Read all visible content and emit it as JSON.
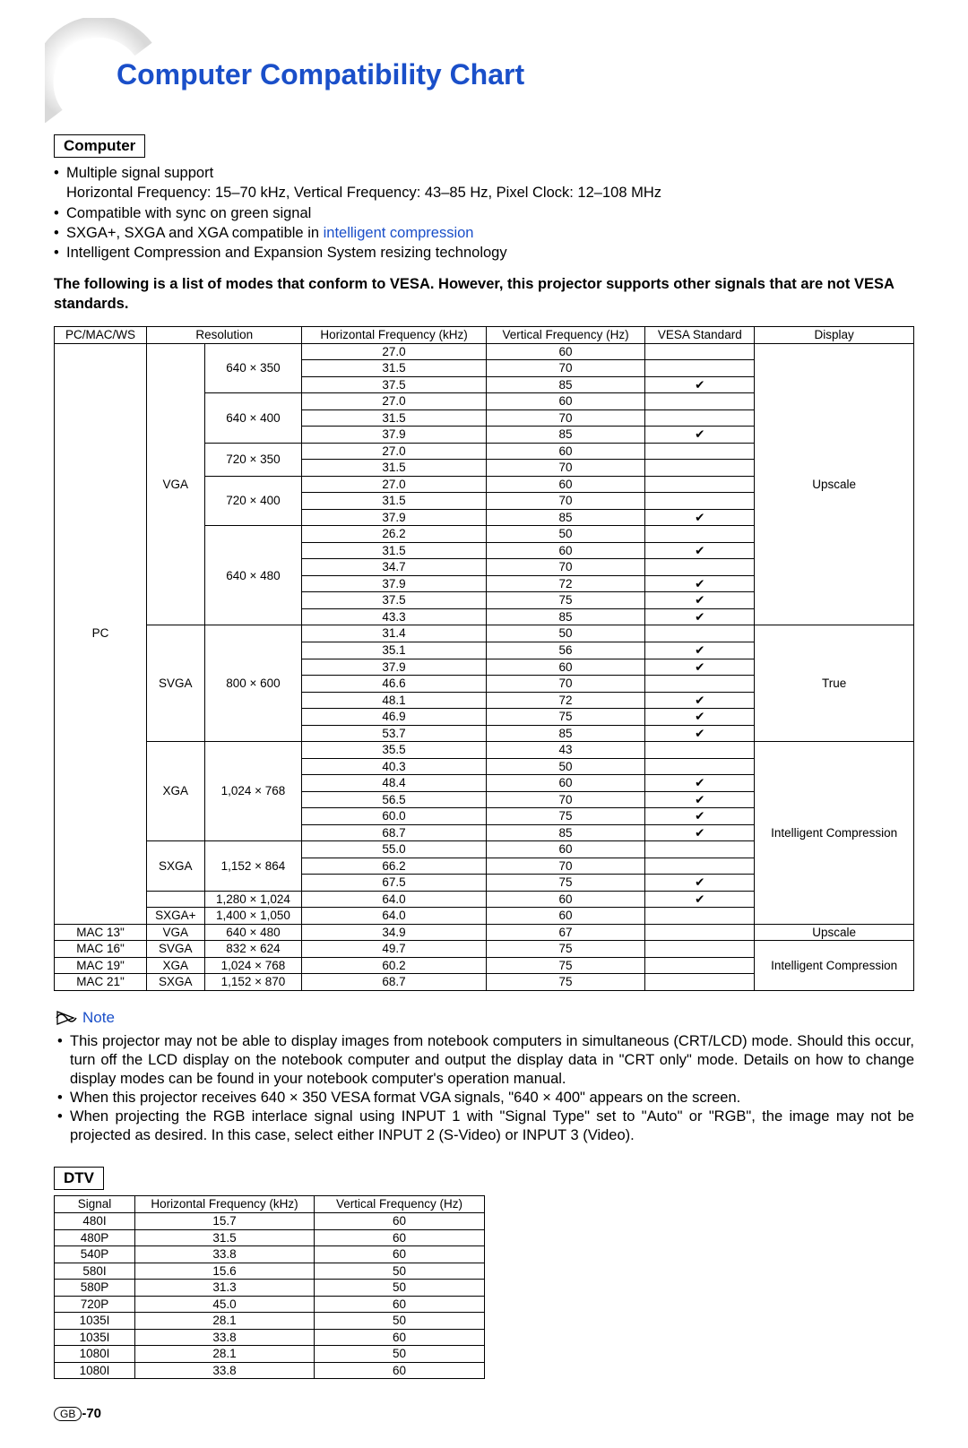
{
  "title": "Computer Compatibility Chart",
  "section1_label": "Computer",
  "bullets": {
    "b1": "Multiple signal support",
    "b1_sub": "Horizontal Frequency: 15–70 kHz, Vertical Frequency: 43–85 Hz, Pixel Clock: 12–108 MHz",
    "b2": "Compatible with sync on green signal",
    "b3_pre": "SXGA+, SXGA and XGA compatible in ",
    "b3_link": "intelligent compression",
    "b4": "Intelligent Compression and Expansion System resizing technology"
  },
  "intro": "The following is a list of modes that conform to VESA.  However, this projector supports other signals that are not VESA standards.",
  "compat_table": {
    "headers": {
      "c1": "PC/MAC/WS",
      "c2": "Resolution",
      "c3": "Horizontal Frequency (kHz)",
      "c4": "Vertical Frequency (Hz)",
      "c5": "VESA Standard",
      "c6": "Display"
    },
    "check": "✔",
    "groups": {
      "pc": "PC",
      "vga": "VGA",
      "svga": "SVGA",
      "xga": "XGA",
      "sxga": "SXGA",
      "sxgap": "SXGA+",
      "mac13": "MAC 13\"",
      "mac16": "MAC 16\"",
      "mac19": "MAC 19\"",
      "mac21": "MAC 21\""
    },
    "res": {
      "r640_350": "640 × 350",
      "r640_400": "640 × 400",
      "r720_350": "720 × 350",
      "r720_400": "720 × 400",
      "r640_480": "640 × 480",
      "r800_600": "800 × 600",
      "r1024_768": "1,024 × 768",
      "r1152_864": "1,152 × 864",
      "r1280_1024": "1,280 × 1,024",
      "r1400_1050": "1,400 × 1,050",
      "r832_624": "832 × 624",
      "r1152_870": "1,152 × 870"
    },
    "display": {
      "upscale": "Upscale",
      "true": "True",
      "intel": "Intelligent Compression"
    },
    "rows": [
      {
        "h": "27.0",
        "v": "60",
        "vesa": false
      },
      {
        "h": "31.5",
        "v": "70",
        "vesa": false
      },
      {
        "h": "37.5",
        "v": "85",
        "vesa": true
      },
      {
        "h": "27.0",
        "v": "60",
        "vesa": false
      },
      {
        "h": "31.5",
        "v": "70",
        "vesa": false
      },
      {
        "h": "37.9",
        "v": "85",
        "vesa": true
      },
      {
        "h": "27.0",
        "v": "60",
        "vesa": false
      },
      {
        "h": "31.5",
        "v": "70",
        "vesa": false
      },
      {
        "h": "27.0",
        "v": "60",
        "vesa": false
      },
      {
        "h": "31.5",
        "v": "70",
        "vesa": false
      },
      {
        "h": "37.9",
        "v": "85",
        "vesa": true
      },
      {
        "h": "26.2",
        "v": "50",
        "vesa": false
      },
      {
        "h": "31.5",
        "v": "60",
        "vesa": true
      },
      {
        "h": "34.7",
        "v": "70",
        "vesa": false
      },
      {
        "h": "37.9",
        "v": "72",
        "vesa": true
      },
      {
        "h": "37.5",
        "v": "75",
        "vesa": true
      },
      {
        "h": "43.3",
        "v": "85",
        "vesa": true
      },
      {
        "h": "31.4",
        "v": "50",
        "vesa": false
      },
      {
        "h": "35.1",
        "v": "56",
        "vesa": true
      },
      {
        "h": "37.9",
        "v": "60",
        "vesa": true
      },
      {
        "h": "46.6",
        "v": "70",
        "vesa": false
      },
      {
        "h": "48.1",
        "v": "72",
        "vesa": true
      },
      {
        "h": "46.9",
        "v": "75",
        "vesa": true
      },
      {
        "h": "53.7",
        "v": "85",
        "vesa": true
      },
      {
        "h": "35.5",
        "v": "43",
        "vesa": false
      },
      {
        "h": "40.3",
        "v": "50",
        "vesa": false
      },
      {
        "h": "48.4",
        "v": "60",
        "vesa": true
      },
      {
        "h": "56.5",
        "v": "70",
        "vesa": true
      },
      {
        "h": "60.0",
        "v": "75",
        "vesa": true
      },
      {
        "h": "68.7",
        "v": "85",
        "vesa": true
      },
      {
        "h": "55.0",
        "v": "60",
        "vesa": false
      },
      {
        "h": "66.2",
        "v": "70",
        "vesa": false
      },
      {
        "h": "67.5",
        "v": "75",
        "vesa": true
      },
      {
        "h": "64.0",
        "v": "60",
        "vesa": true
      },
      {
        "h": "64.0",
        "v": "60",
        "vesa": false
      },
      {
        "h": "34.9",
        "v": "67",
        "vesa": false
      },
      {
        "h": "49.7",
        "v": "75",
        "vesa": false
      },
      {
        "h": "60.2",
        "v": "75",
        "vesa": false
      },
      {
        "h": "68.7",
        "v": "75",
        "vesa": false
      }
    ]
  },
  "note_label": "Note",
  "notes": {
    "n1": "This projector may not be able to display images from notebook computers in simultaneous (CRT/LCD) mode. Should this occur, turn off the LCD display on the notebook computer and output the display data in \"CRT only\" mode. Details on how to change display modes can be found in your notebook computer's operation manual.",
    "n2": "When this projector receives 640 × 350 VESA format VGA signals, \"640 × 400\" appears on the screen.",
    "n3": "When projecting the RGB interlace signal using INPUT 1 with \"Signal Type\" set to \"Auto\" or \"RGB\", the image may not be projected as desired. In this case, select either INPUT 2 (S-Video) or INPUT 3 (Video)."
  },
  "section2_label": "DTV",
  "dtv_table": {
    "headers": {
      "c1": "Signal",
      "c2": "Horizontal Frequency (kHz)",
      "c3": "Vertical Frequency (Hz)"
    },
    "rows": [
      {
        "s": "480I",
        "h": "15.7",
        "v": "60"
      },
      {
        "s": "480P",
        "h": "31.5",
        "v": "60"
      },
      {
        "s": "540P",
        "h": "33.8",
        "v": "60"
      },
      {
        "s": "580I",
        "h": "15.6",
        "v": "50"
      },
      {
        "s": "580P",
        "h": "31.3",
        "v": "50"
      },
      {
        "s": "720P",
        "h": "45.0",
        "v": "60"
      },
      {
        "s": "1035I",
        "h": "28.1",
        "v": "50"
      },
      {
        "s": "1035I",
        "h": "33.8",
        "v": "60"
      },
      {
        "s": "1080I",
        "h": "28.1",
        "v": "50"
      },
      {
        "s": "1080I",
        "h": "33.8",
        "v": "60"
      }
    ]
  },
  "page": {
    "gb": "GB",
    "num": "-70"
  },
  "colors": {
    "link": "#1a4fc9",
    "arc_gradient_start": "#d9d9d9",
    "arc_gradient_end": "#ffffff"
  }
}
